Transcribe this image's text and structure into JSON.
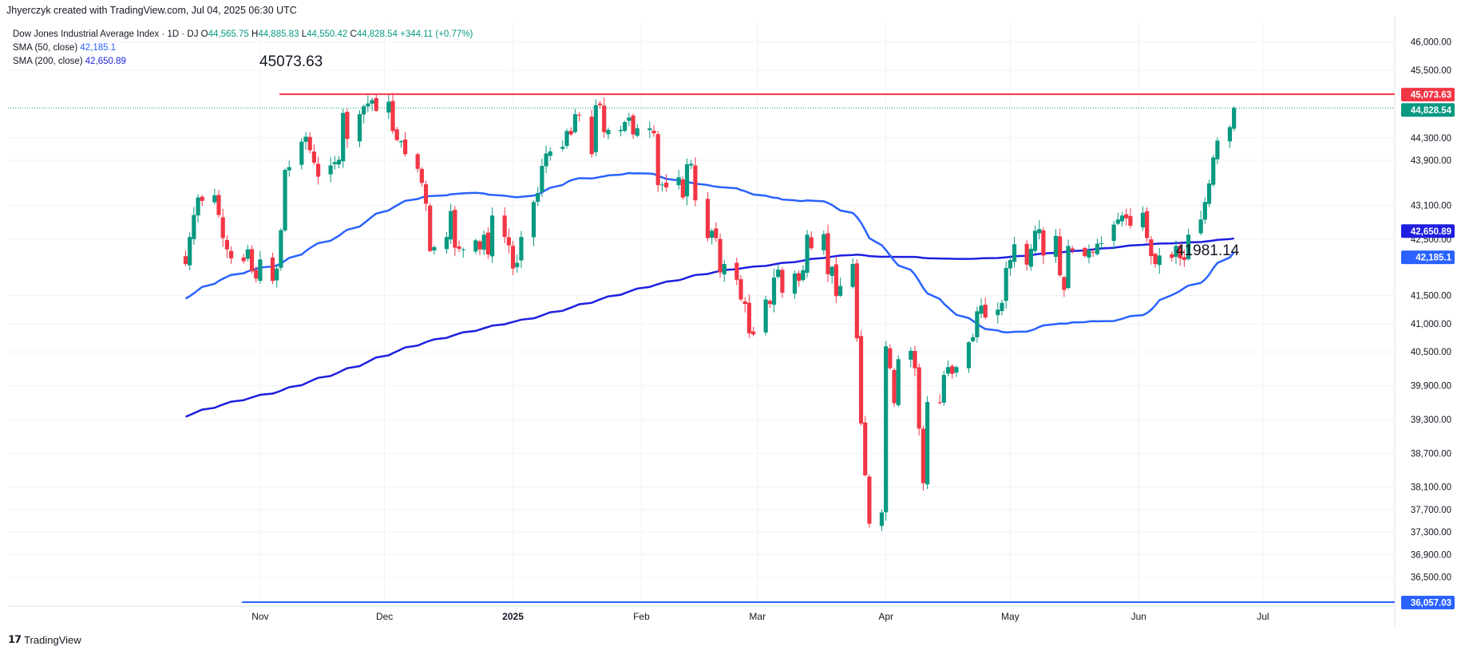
{
  "header": {
    "attribution": "Jhyerczyk created with TradingView.com, Jul 04, 2025 06:30 UTC"
  },
  "legend": {
    "symbol": "Dow Jones Industrial Average Index · 1D · DJ",
    "ohlc": [
      {
        "key": "O",
        "value": "44,565.75"
      },
      {
        "key": "H",
        "value": "44,885.83"
      },
      {
        "key": "L",
        "value": "44,550.42"
      },
      {
        "key": "C",
        "value": "44,828.54"
      }
    ],
    "change": "+344.11 (+0.77%)",
    "sma50_label": "SMA (50, close)",
    "sma50_value": "42,185.1",
    "sma200_label": "SMA (200, close)",
    "sma200_value": "42,650.89"
  },
  "annotations": {
    "high_label": "45073.63",
    "low_label": "41981.14"
  },
  "footer": {
    "brand": "TradingView"
  },
  "chart_data": {
    "type": "candlestick",
    "title": "Dow Jones Industrial Average Index · 1D · DJ",
    "y_axis": {
      "position": "right",
      "range": [
        36100,
        46350
      ],
      "tick_labels": [
        "46,000.00",
        "45,500.00",
        "44,300.00",
        "43,900.00",
        "43,100.00",
        "42,500.00",
        "41,500.00",
        "41,000.00",
        "40,500.00",
        "39,900.00",
        "39,300.00",
        "38,700.00",
        "38,100.00",
        "37,700.00",
        "37,300.00",
        "36,900.00",
        "36,500.00"
      ]
    },
    "x_axis": {
      "tick_labels": [
        "Nov",
        "Dec",
        "2025",
        "Feb",
        "Mar",
        "Apr",
        "May",
        "Jun",
        "Jul"
      ]
    },
    "grid": true,
    "horizontal_lines": [
      {
        "value": 45073.63,
        "color": "#f23645"
      },
      {
        "value": 36057.03,
        "color": "#2962ff"
      }
    ],
    "price_tags": [
      {
        "label": "45,073.63",
        "color": "#f23645"
      },
      {
        "label": "44,828.54",
        "color": "#089981"
      },
      {
        "label": "42,650.89",
        "color": "#1e1ee0"
      },
      {
        "label": "42,185.1",
        "color": "#2962ff"
      },
      {
        "label": "36,057.03",
        "color": "#2962ff"
      }
    ],
    "candle_colors": {
      "up": "#089981",
      "down": "#f23645"
    },
    "candles_start": "2024-10-14",
    "closes": [
      42060,
      42540,
      42930,
      43240,
      43180,
      43280,
      42930,
      42520,
      42320,
      42160,
      42110,
      42320,
      41930,
      41800,
      42140,
      41760,
      41980,
      42660,
      43730,
      43780,
      44230,
      44320,
      44080,
      43860,
      43610,
      43810,
      43870,
      43910,
      44740,
      44280,
      44720,
      44860,
      44910,
      44970,
      44780,
      44940,
      44420,
      44260,
      44240,
      44010,
      43750,
      43500,
      43130,
      42290,
      42360,
      42540,
      43000,
      42350,
      42330,
      42320,
      42480,
      42320,
      42580,
      42230,
      42920,
      42540,
      42390,
      41980,
      42080,
      42540,
      43160,
      43320,
      43800,
      44020,
      44060,
      44140,
      44420,
      44360,
      44720,
      44700,
      44010,
      44880,
      44880,
      44400,
      44440,
      44440,
      44580,
      44660,
      44360,
      44470,
      44470,
      44380,
      43460,
      43470,
      43420,
      43600,
      43240,
      43830,
      43840,
      43190,
      42520,
      42650,
      42520,
      41910,
      42060,
      41780,
      41430,
      41350,
      40830,
      40810,
      41430,
      41350,
      41820,
      41960,
      41550,
      41890,
      41760,
      41950,
      42580,
      42340,
      42590,
      41880,
      42010,
      41490,
      41670,
      42060,
      40740,
      39230,
      38310,
      37450,
      37650,
      40600,
      40210,
      39590,
      40370,
      40520,
      40210,
      39140,
      38170,
      39610,
      39600,
      40090,
      40230,
      40110,
      40230,
      40670,
      40760,
      41220,
      41320,
      41110,
      41250,
      41370,
      41990,
      42130,
      42410,
      42050,
      42330,
      42650,
      42680,
      42210,
      42560,
      41860,
      41600,
      42380,
      42300,
      42200,
      42310,
      42270,
      42420,
      42430,
      42760,
      42850,
      42920,
      42870,
      42740,
      42970,
      42520,
      42200,
      42060,
      42210,
      42170,
      42380,
      42160,
      42130,
      42580,
      42850,
      43160,
      43490,
      43950,
      44250,
      44490,
      44830
    ]
  }
}
